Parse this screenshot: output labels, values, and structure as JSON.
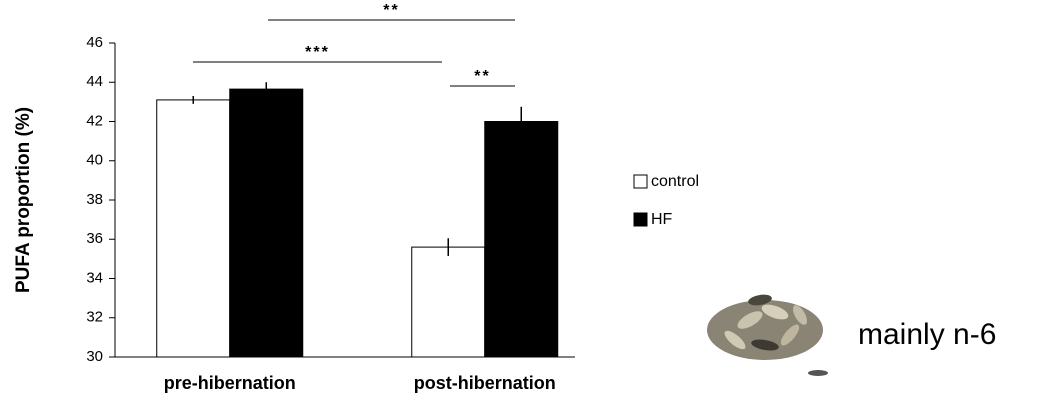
{
  "chart_data": {
    "type": "bar",
    "y_label": "PUFA proportion (%)",
    "categories": [
      "pre-hibernation",
      "post-hibernation"
    ],
    "series": [
      {
        "name": "control",
        "color": "#ffffff",
        "values": [
          43.1,
          35.6
        ],
        "errors": [
          0.2,
          0.45
        ]
      },
      {
        "name": "HF",
        "color": "#000000",
        "values": [
          43.65,
          42.0
        ],
        "errors": [
          0.35,
          0.75
        ]
      }
    ],
    "ylim": [
      30,
      46
    ],
    "yticks": [
      30,
      32,
      34,
      36,
      38,
      40,
      42,
      44,
      46
    ],
    "annotations": [
      "**",
      "***",
      "**"
    ],
    "side_label": "mainly n-6"
  }
}
